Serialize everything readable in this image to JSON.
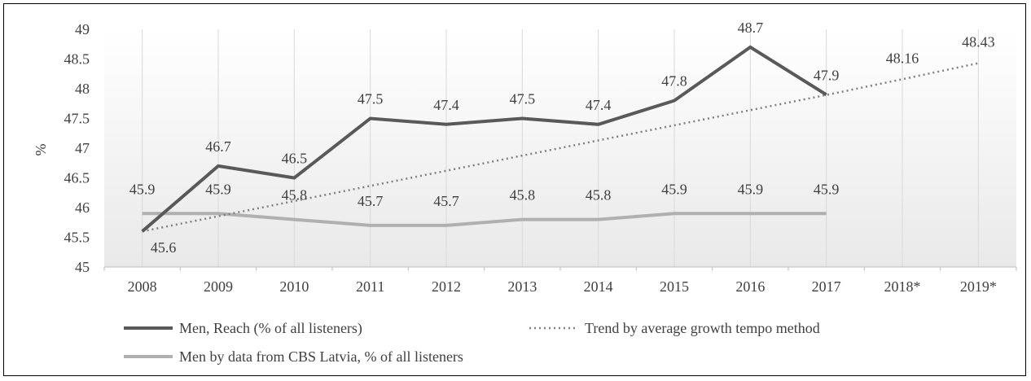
{
  "chart_data": {
    "type": "line",
    "ylabel": "%",
    "ylim": [
      45,
      49
    ],
    "y_ticks": [
      "45",
      "45.5",
      "46",
      "46.5",
      "47",
      "47.5",
      "48",
      "48.5",
      "49"
    ],
    "categories": [
      "2008",
      "2009",
      "2010",
      "2011",
      "2012",
      "2013",
      "2014",
      "2015",
      "2016",
      "2017",
      "2018*",
      "2019*"
    ],
    "series": [
      {
        "name": "Men, Reach (% of all listeners)",
        "color": "#595959",
        "style": "solid",
        "values": [
          45.6,
          46.7,
          46.5,
          47.5,
          47.4,
          47.5,
          47.4,
          47.8,
          48.7,
          47.9,
          null,
          null
        ],
        "labels": [
          "45.6",
          "46.7",
          "46.5",
          "47.5",
          "47.4",
          "47.5",
          "47.4",
          "47.8",
          "48.7",
          "47.9",
          "",
          ""
        ]
      },
      {
        "name": "Trend by average growth tempo method",
        "color": "#808080",
        "style": "dotted",
        "values": [
          45.6,
          45.855,
          46.11,
          46.365,
          46.62,
          46.875,
          47.13,
          47.385,
          47.64,
          47.895,
          48.16,
          48.43
        ],
        "labels": [
          "",
          "",
          "",
          "",
          "",
          "",
          "",
          "",
          "",
          "",
          "48.16",
          "48.43"
        ]
      },
      {
        "name": "Men by data from CBS Latvia, % of all listeners",
        "color": "#b0b0b0",
        "style": "solid",
        "values": [
          45.9,
          45.9,
          45.8,
          45.7,
          45.7,
          45.8,
          45.8,
          45.9,
          45.9,
          45.9,
          null,
          null
        ],
        "labels": [
          "45.9",
          "45.9",
          "45.8",
          "45.7",
          "45.7",
          "45.8",
          "45.8",
          "45.9",
          "45.9",
          "45.9",
          "",
          ""
        ]
      }
    ],
    "grid": "vertical",
    "legend": "bottom"
  }
}
